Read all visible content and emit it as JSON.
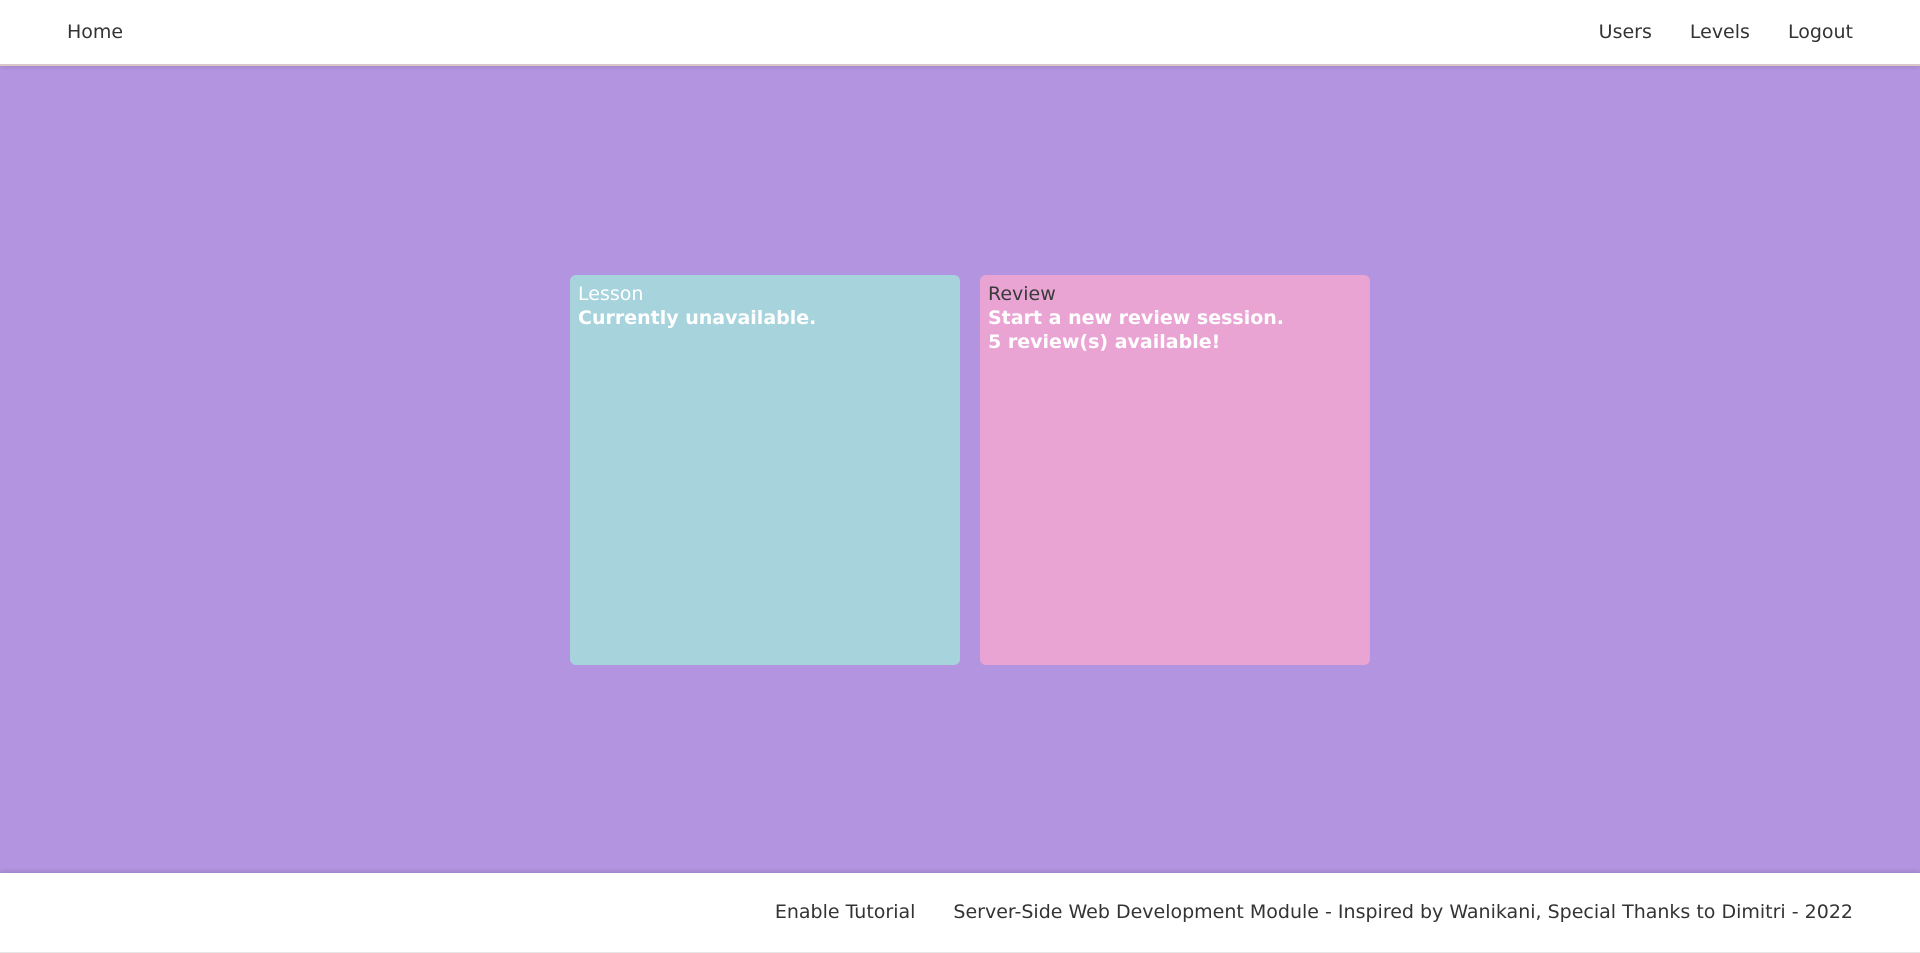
{
  "nav": {
    "home": "Home",
    "users": "Users",
    "levels": "Levels",
    "logout": "Logout"
  },
  "cards": {
    "lesson": {
      "title": "Lesson",
      "status": "Currently unavailable."
    },
    "review": {
      "title": "Review",
      "line1": "Start a new review session.",
      "line2": "5 review(s) available!"
    }
  },
  "footer": {
    "tutorial": "Enable Tutorial",
    "credits": "Server-Side Web Development Module - Inspired by Wanikani, Special Thanks to Dimitri - 2022"
  },
  "colors": {
    "background": "#b294e0",
    "lesson_card": "#a6d3dc",
    "review_card": "#e9a4d4"
  }
}
